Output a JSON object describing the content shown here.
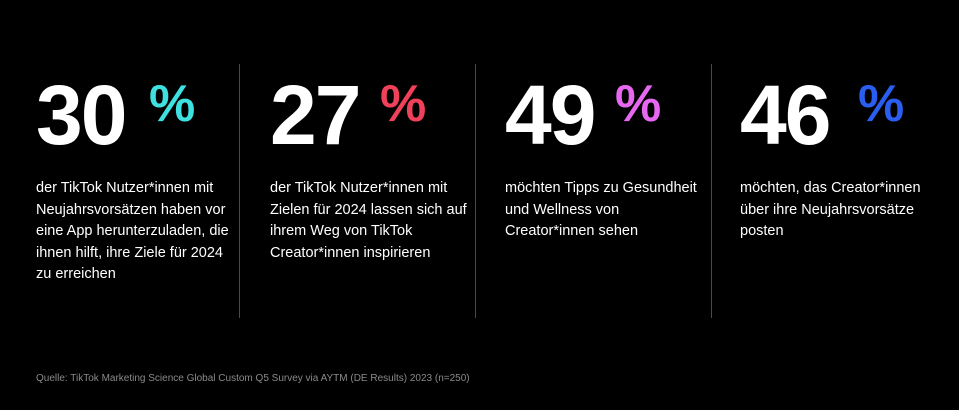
{
  "stats": [
    {
      "number": "30",
      "percent": "%",
      "percent_color": "#3ee0e0",
      "description": "der TikTok Nutzer*innen mit Neujahrsvorsätzen haben vor eine App herunterzuladen, die ihnen hilft, ihre Ziele für 2024 zu erreichen"
    },
    {
      "number": "27",
      "percent": "%",
      "percent_color": "#f0405a",
      "description": "der TikTok Nutzer*innen mit Zielen für 2024 lassen sich auf ihrem Weg von TikTok Creator*innen inspirieren"
    },
    {
      "number": "49",
      "percent": "%",
      "percent_color": "#e668f0",
      "description": "möchten Tipps zu Gesundheit und Wellness von Creator*innen sehen"
    },
    {
      "number": "46",
      "percent": "%",
      "percent_color": "#2a5ef0",
      "description": "möchten, das Creator*innen über ihre Neujahrsvorsätze posten"
    }
  ],
  "source": "Quelle: TikTok Marketing Science Global Custom Q5 Survey via AYTM (DE Results) 2023 (n=250)"
}
